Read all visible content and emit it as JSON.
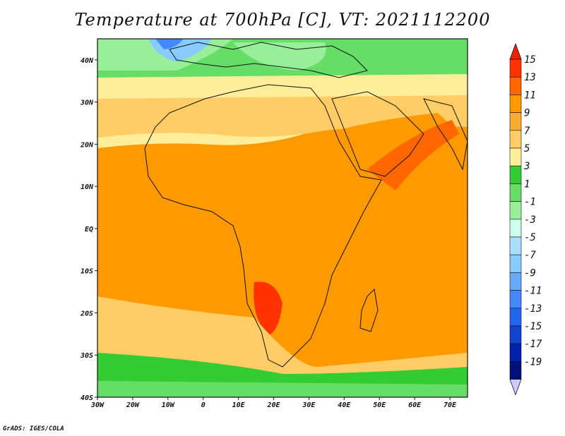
{
  "title": "Temperature at 700hPa [C], VT: 2021112200",
  "credit": "GrADS: IGES/COLA",
  "map": {
    "lon_range": [
      -30,
      75
    ],
    "lat_range": [
      -40,
      45
    ],
    "lon_ticks": [
      "30W",
      "20W",
      "10W",
      "0",
      "10E",
      "20E",
      "30E",
      "40E",
      "50E",
      "60E",
      "70E"
    ],
    "lat_ticks": [
      "40N",
      "30N",
      "20N",
      "10N",
      "EQ",
      "10S",
      "20S",
      "30S",
      "40S"
    ]
  },
  "colorbar": {
    "labels": [
      "15",
      "13",
      "11",
      "9",
      "7",
      "5",
      "3",
      "1",
      "-1",
      "-3",
      "-5",
      "-7",
      "-9",
      "-11",
      "-13",
      "-15",
      "-17",
      "-19"
    ],
    "colors": [
      "#ff3300",
      "#ff6600",
      "#ff9900",
      "#ffaa33",
      "#ffcc66",
      "#ffee99",
      "#33cc33",
      "#66dd66",
      "#99ee99",
      "#ccffee",
      "#aaddff",
      "#88ccff",
      "#66aaff",
      "#4488ff",
      "#2266ee",
      "#1144cc",
      "#0022aa",
      "#001177"
    ],
    "top_color": "#ee2200",
    "bottom_color": "#ccccff"
  }
}
